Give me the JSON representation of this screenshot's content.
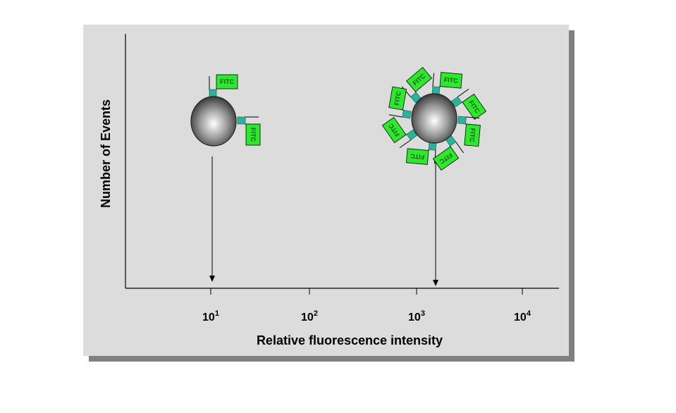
{
  "y_axis_label": "Number of Events",
  "x_axis_label": "Relative fluorescence intensity",
  "x_ticks": [
    {
      "base": "10",
      "exponent": "1"
    },
    {
      "base": "10",
      "exponent": "2"
    },
    {
      "base": "10",
      "exponent": "3"
    },
    {
      "base": "10",
      "exponent": "4"
    }
  ],
  "left_bead": {
    "labels": [
      "FITC",
      "FITC"
    ]
  },
  "right_bead": {
    "labels": [
      "FITC",
      "FITC",
      "FITC",
      "FITC",
      "FITC",
      "FITC",
      "FITC",
      "FITC"
    ]
  }
}
